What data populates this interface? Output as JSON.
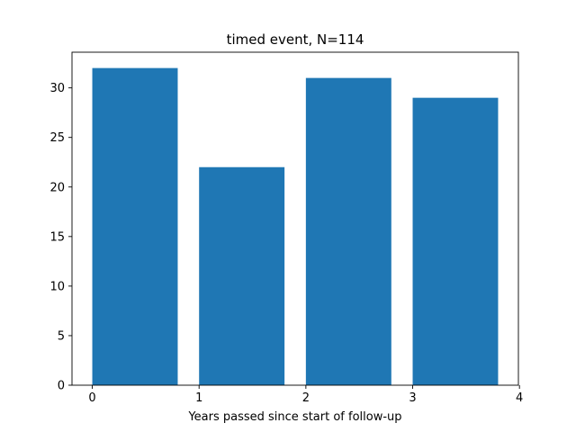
{
  "chart_data": {
    "type": "bar",
    "title": "timed event, N=114",
    "xlabel": "Years passed since start of follow-up",
    "ylabel": "",
    "bars": [
      {
        "x_start": 0,
        "x_end": 0.8,
        "value": 32
      },
      {
        "x_start": 1,
        "x_end": 1.8,
        "value": 22
      },
      {
        "x_start": 2,
        "x_end": 2.8,
        "value": 31
      },
      {
        "x_start": 3,
        "x_end": 3.8,
        "value": 29
      }
    ],
    "xlim": [
      -0.19,
      3.99
    ],
    "ylim": [
      0,
      33.6
    ],
    "xticks": [
      0,
      1,
      2,
      3,
      4
    ],
    "yticks": [
      0,
      5,
      10,
      15,
      20,
      25,
      30
    ],
    "bar_color": "#1f77b4",
    "grid": false,
    "legend": "none"
  }
}
